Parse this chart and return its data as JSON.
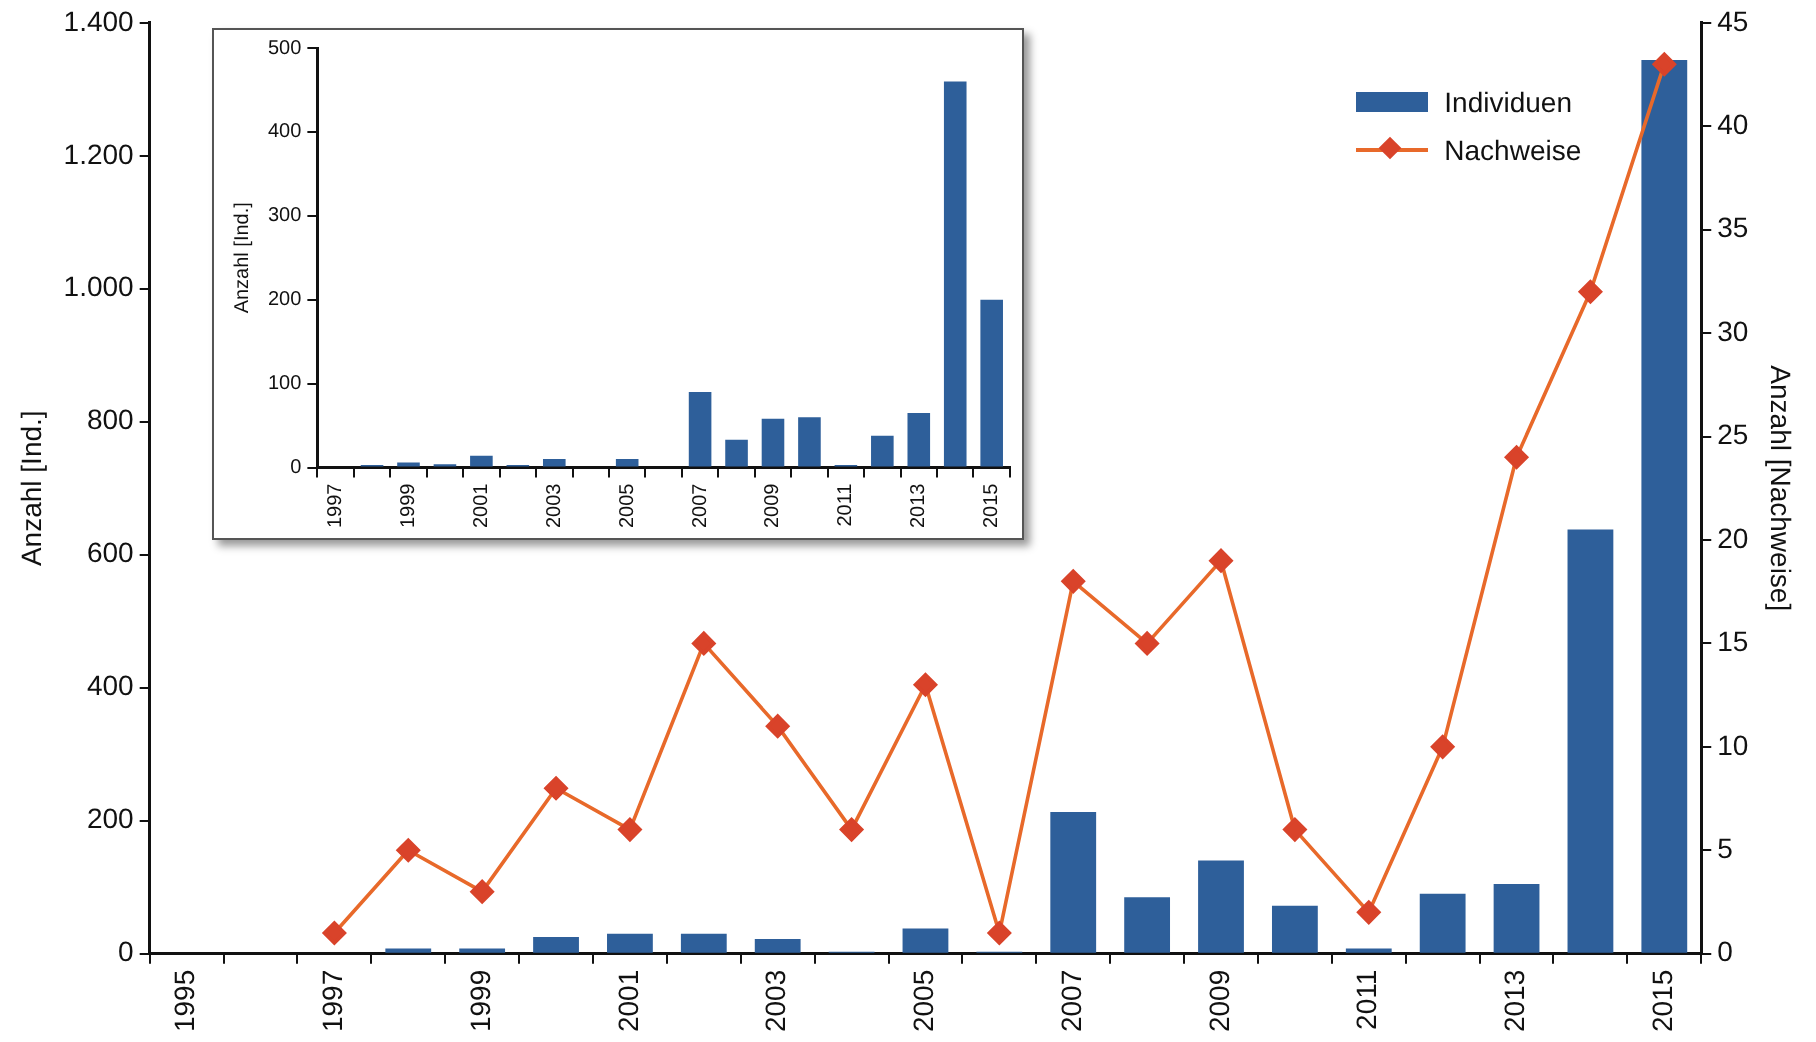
{
  "chart_data": [
    {
      "type": "bar",
      "ylabel": "Anzahl [Ind.]",
      "y2label": "Anzahl [Nachweise]",
      "categories": [
        "1995",
        null,
        "1997",
        null,
        "1999",
        null,
        "2001",
        null,
        "2003",
        null,
        "2005",
        null,
        "2007",
        null,
        "2009",
        null,
        "2011",
        null,
        "2013",
        null,
        "2015"
      ],
      "series": [
        {
          "name": "Individuen",
          "color": "#2e5f9a",
          "values": [
            0,
            0,
            0,
            8,
            8,
            25,
            30,
            30,
            22,
            3,
            38,
            3,
            213,
            85,
            140,
            72,
            8,
            90,
            105,
            638,
            1344
          ]
        },
        {
          "name": "Nachweise",
          "type": "line",
          "axis": "y2",
          "color": "#e8692a",
          "values": [
            null,
            null,
            1,
            5,
            3,
            8,
            6,
            15,
            11,
            6,
            13,
            1,
            18,
            15,
            19,
            6,
            2,
            10,
            24,
            32,
            43
          ]
        }
      ],
      "ylim": [
        0,
        1400
      ],
      "yticks": [
        0,
        200,
        400,
        600,
        800,
        {
          "value": 1000,
          "label": "1.000"
        },
        {
          "value": 1200,
          "label": "1.200"
        },
        {
          "value": 1400,
          "label": "1.400"
        }
      ],
      "y2lim": [
        0,
        45
      ],
      "y2ticks": [
        0,
        5,
        10,
        15,
        20,
        25,
        30,
        35,
        40,
        45
      ],
      "grid": false,
      "legend": "top right",
      "marker": "diamond"
    },
    {
      "type": "bar",
      "ylabel": "Anzahl [Ind.]",
      "categories": [
        "1997",
        null,
        "1999",
        null,
        "2001",
        null,
        "2003",
        null,
        "2005",
        null,
        "2007",
        null,
        "2009",
        null,
        "2011",
        null,
        "2013",
        null,
        "2015"
      ],
      "values": [
        0,
        3,
        6,
        4,
        14,
        3,
        10,
        0,
        10,
        0,
        90,
        33,
        58,
        60,
        3,
        38,
        65,
        460,
        200
      ],
      "color": "#2e5f9a",
      "ylim": [
        0,
        500
      ],
      "yticks": [
        0,
        100,
        200,
        300,
        400,
        500
      ],
      "grid": false
    }
  ]
}
